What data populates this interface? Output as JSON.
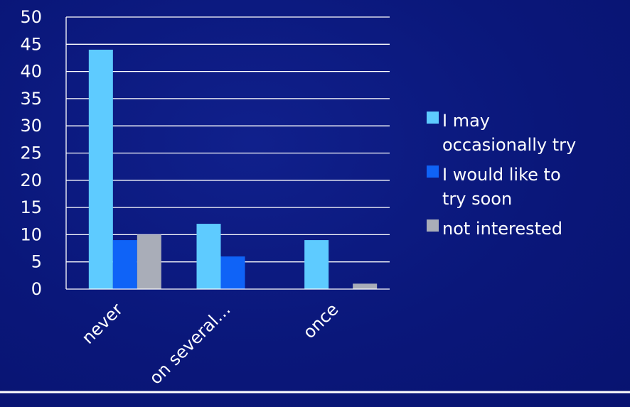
{
  "chart_data": {
    "type": "bar",
    "title": "",
    "xlabel": "",
    "ylabel": "",
    "categories": [
      "never",
      "on several…",
      "once"
    ],
    "series": [
      {
        "name": "I may occasionally try",
        "legend_lines": [
          "I may",
          "occasionally try"
        ],
        "values": [
          44,
          12,
          9
        ],
        "color": "#5ecbff"
      },
      {
        "name": "I would like to try soon",
        "legend_lines": [
          "I would like to",
          "try soon"
        ],
        "values": [
          9,
          6,
          0
        ],
        "color": "#0f63f7"
      },
      {
        "name": "not interested",
        "legend_lines": [
          "not interested"
        ],
        "values": [
          10,
          0,
          1
        ],
        "color": "#a9adb8"
      }
    ],
    "ylim": [
      0,
      50
    ],
    "yticks": [
      0,
      5,
      10,
      15,
      20,
      25,
      30,
      35,
      40,
      45,
      50
    ],
    "grid": true,
    "legend_position": "right"
  },
  "colors": {
    "background": "#0a177a",
    "gridline": "#ffffff",
    "text": "#ffffff",
    "footer_rule": "#ffffff"
  }
}
